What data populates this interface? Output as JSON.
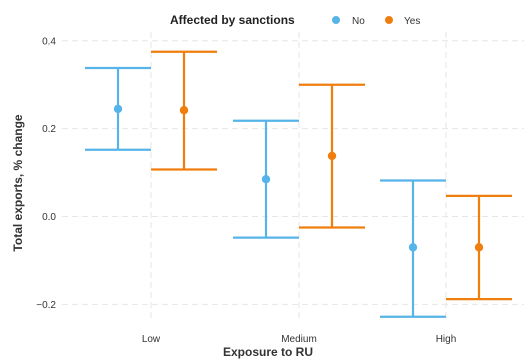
{
  "chart_data": {
    "type": "errorbar",
    "title": "",
    "xlabel": "Exposure to RU",
    "ylabel": "Total exports, % change",
    "categories": [
      "Low",
      "Medium",
      "High"
    ],
    "ylim": [
      -0.24,
      0.42
    ],
    "yticks": [
      -0.2,
      0.0,
      0.2,
      0.4
    ],
    "ytick_labels": [
      "−0.2",
      "0.0",
      "0.2",
      "0.4"
    ],
    "grid": true,
    "legend": {
      "title": "Affected by sanctions",
      "position": "top"
    },
    "series": [
      {
        "name": "No",
        "color": "#56B4E9",
        "estimate": [
          0.245,
          0.085,
          -0.07
        ],
        "lower": [
          0.152,
          -0.048,
          -0.228
        ],
        "upper": [
          0.338,
          0.218,
          0.082
        ]
      },
      {
        "name": "Yes",
        "color": "#F07E0F",
        "estimate": [
          0.242,
          0.138,
          -0.07
        ],
        "lower": [
          0.107,
          -0.025,
          -0.188
        ],
        "upper": [
          0.375,
          0.3,
          0.047
        ]
      }
    ]
  }
}
